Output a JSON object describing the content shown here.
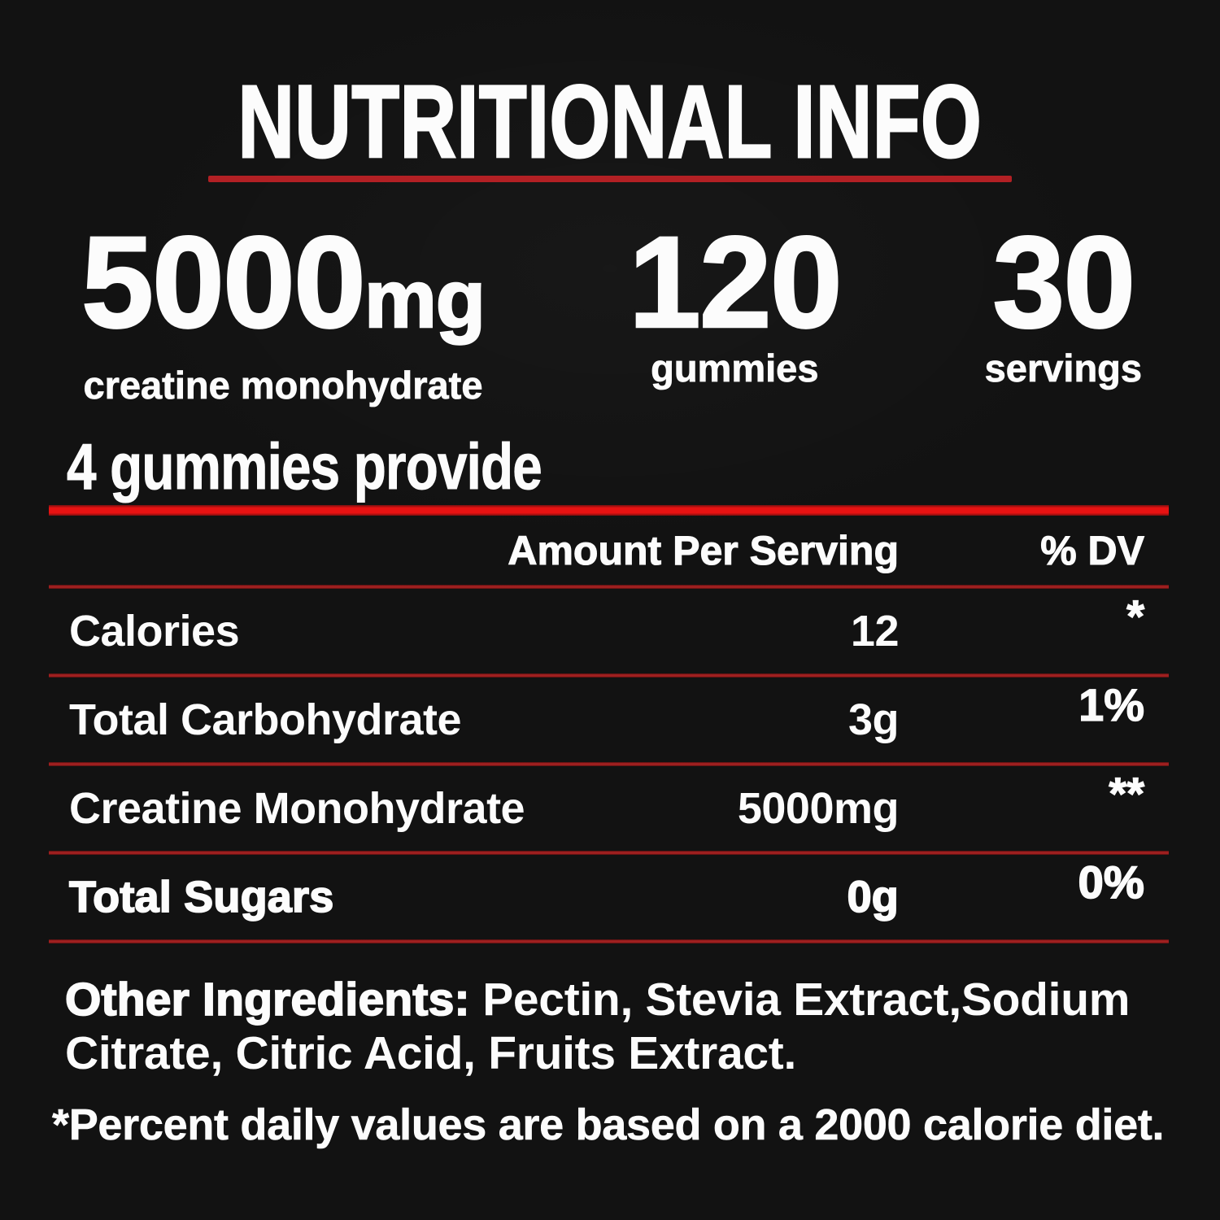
{
  "colors": {
    "background": "#121212",
    "text": "#fcfcfc",
    "accent_red_bright": "#e81212",
    "accent_red_dark": "#a02020",
    "title_underline": "#b22024"
  },
  "header": {
    "title": "NUTRITIONAL INFO"
  },
  "stats": [
    {
      "value": "5000",
      "unit": "mg",
      "label": "creatine monohydrate"
    },
    {
      "value": "120",
      "label": "gummies"
    },
    {
      "value": "30",
      "label": "servings"
    }
  ],
  "serving": {
    "heading": "4 gummies provide"
  },
  "table": {
    "columns": {
      "amount": "Amount Per Serving",
      "dv": "% DV"
    },
    "rows": [
      {
        "label": "Calories",
        "amount": "12",
        "dv": "*"
      },
      {
        "label": "Total Carbohydrate",
        "amount": "3g",
        "dv": "1%"
      },
      {
        "label": "Creatine Monohydrate",
        "amount": "5000mg",
        "dv": "**"
      },
      {
        "label": "Total Sugars",
        "amount": "0g",
        "dv": "0%"
      }
    ]
  },
  "ingredients": {
    "label": "Other Ingredients:",
    "text": " Pectin, Stevia Extract,Sodium Citrate, Citric Acid, Fruits Extract."
  },
  "footnote": "*Percent daily values are based on a 2000 calorie diet."
}
